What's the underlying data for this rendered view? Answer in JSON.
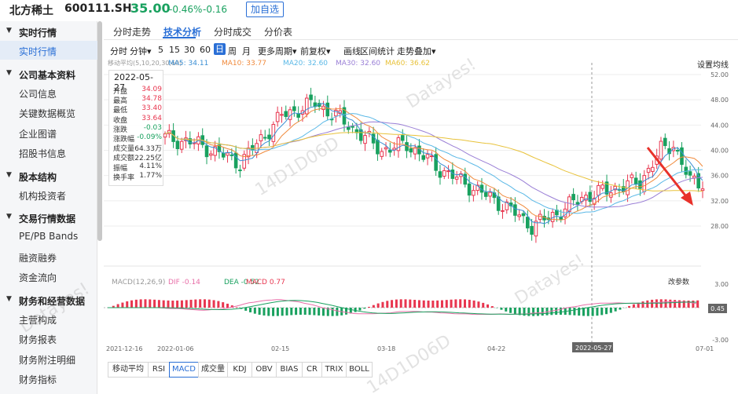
{
  "header": {
    "name": "北方稀土",
    "code": "600111.SH",
    "price": "35.00",
    "pct": "-0.46%",
    "chg": "-0.16",
    "add_btn": "加自选"
  },
  "sidebar": {
    "groups": [
      {
        "title": "实时行情",
        "items": [
          "实时行情"
        ]
      },
      {
        "title": "公司基本资料",
        "items": [
          "公司信息",
          "关键数据概览",
          "企业图谱",
          "招股书信息"
        ]
      },
      {
        "title": "股本结构",
        "items": [
          "机构投资者"
        ]
      },
      {
        "title": "交易行情数据",
        "items": [
          "PE/PB Bands",
          "融资融券",
          "资金流向"
        ]
      },
      {
        "title": "财务和经营数据",
        "items": [
          "主营构成",
          "财务报表",
          "财务附注明细",
          "财务指标"
        ]
      }
    ]
  },
  "tabs": [
    "分时走势",
    "技术分析",
    "分时成交",
    "分价表"
  ],
  "toolbar": {
    "items": [
      "分时",
      "分钟▾",
      "5",
      "15",
      "30",
      "60",
      "日",
      "周",
      "月",
      "更多周期▾",
      "前复权▾",
      "画线",
      "区间统计",
      "走势叠加▾"
    ],
    "settings": "设置均线"
  },
  "ma_legend": {
    "label": "移动平均(5,10,20,30,60)",
    "ma5": "MA5: 34.11",
    "ma10": "MA10: 33.77",
    "ma20": "MA20: 32.60",
    "ma30": "MA30: 32.60",
    "ma60": "MA60: 36.62"
  },
  "colors": {
    "up": "#e8364f",
    "down": "#19a15f",
    "ma5": "#3b8fd4",
    "ma10": "#f08a3c",
    "ma20": "#5ab8e6",
    "ma30": "#9a7fd6",
    "ma60": "#e8c23a",
    "accent": "#2a6fd6"
  },
  "info": {
    "date": "2022-05-27",
    "rows": [
      {
        "k": "开盘",
        "v": "34.09"
      },
      {
        "k": "最高",
        "v": "34.78"
      },
      {
        "k": "最低",
        "v": "33.40"
      },
      {
        "k": "收盘",
        "v": "33.64"
      },
      {
        "k": "涨跌",
        "v": "-0.03"
      },
      {
        "k": "涨跌幅",
        "v": "-0.09%"
      },
      {
        "k": "成交量",
        "v": "64.33万"
      },
      {
        "k": "成交额",
        "v": "22.25亿"
      },
      {
        "k": "振幅",
        "v": "4.11%"
      },
      {
        "k": "换手率",
        "v": "1.77%"
      }
    ]
  },
  "price_axis": [
    "52.00",
    "48.00",
    "44.00",
    "40.00",
    "36.00",
    "32.00",
    "28.00"
  ],
  "macd": {
    "label": "MACD(12,26,9)",
    "dif": "DIF -0.14",
    "dea": "DEA -0.52",
    "macd": "MACD 0.77",
    "params": "改参数",
    "axis": [
      "3.00",
      "0.45",
      "-3.00"
    ]
  },
  "date_axis": [
    "2021-12-16",
    "2022-01-06",
    "02-15",
    "03-18",
    "04-22",
    "2022-05-27",
    "07-01"
  ],
  "bottom_tabs": [
    "移动平均",
    "RSI",
    "MACD",
    "成交量",
    "KDJ",
    "OBV",
    "BIAS",
    "CR",
    "TRIX",
    "BOLL"
  ],
  "watermarks": [
    "Datayes!",
    "14D1D06D",
    "Datayes!",
    "Datayes!",
    "14D1D06D",
    "Datayes!"
  ]
}
